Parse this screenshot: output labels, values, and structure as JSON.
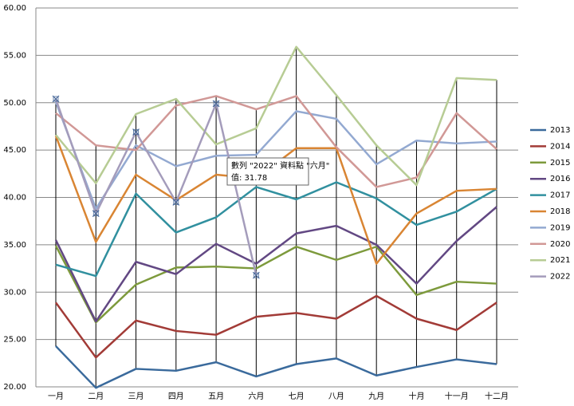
{
  "chart_data": {
    "type": "line",
    "categories": [
      "一月",
      "二月",
      "三月",
      "四月",
      "五月",
      "六月",
      "七月",
      "八月",
      "九月",
      "十月",
      "十一月",
      "十二月"
    ],
    "series": [
      {
        "name": "2013",
        "color": "#3a6a9c",
        "values": [
          24.3,
          19.9,
          21.9,
          21.7,
          22.6,
          21.1,
          22.4,
          23.0,
          21.2,
          22.1,
          22.9,
          22.4
        ]
      },
      {
        "name": "2014",
        "color": "#a23b37",
        "values": [
          28.9,
          23.1,
          27.0,
          25.9,
          25.5,
          27.4,
          27.8,
          27.2,
          29.6,
          27.2,
          26.0,
          28.9
        ]
      },
      {
        "name": "2015",
        "color": "#7d9a3c",
        "values": [
          34.9,
          26.8,
          30.8,
          32.6,
          32.7,
          32.5,
          34.8,
          33.4,
          34.8,
          29.7,
          31.1,
          30.9
        ]
      },
      {
        "name": "2016",
        "color": "#624883",
        "values": [
          35.5,
          26.9,
          33.2,
          31.9,
          35.1,
          33.0,
          36.2,
          37.0,
          35.0,
          30.9,
          35.4,
          39.0
        ]
      },
      {
        "name": "2017",
        "color": "#31909f",
        "values": [
          32.9,
          31.7,
          40.4,
          36.3,
          37.9,
          41.1,
          39.8,
          41.6,
          39.9,
          37.1,
          38.5,
          40.9
        ]
      },
      {
        "name": "2018",
        "color": "#d98533",
        "values": [
          46.5,
          35.3,
          42.4,
          39.7,
          42.4,
          42.0,
          45.2,
          45.2,
          33.0,
          38.3,
          40.7,
          40.9
        ]
      },
      {
        "name": "2019",
        "color": "#93a9d1",
        "values": [
          50.1,
          38.8,
          45.5,
          43.3,
          44.4,
          44.5,
          49.1,
          48.3,
          43.5,
          46.0,
          45.7,
          45.9
        ]
      },
      {
        "name": "2020",
        "color": "#d19896",
        "values": [
          48.9,
          45.5,
          45.0,
          49.7,
          50.7,
          49.3,
          50.7,
          45.3,
          41.1,
          42.1,
          48.9,
          45.1
        ]
      },
      {
        "name": "2021",
        "color": "#b7cc94",
        "values": [
          46.6,
          41.5,
          48.8,
          50.4,
          45.6,
          47.3,
          55.9,
          50.8,
          45.5,
          41.3,
          52.6,
          52.4
        ]
      },
      {
        "name": "2022",
        "color": "#a49cbb",
        "values": [
          50.4,
          38.3,
          46.9,
          39.5,
          49.9,
          31.78,
          null,
          null,
          null,
          null,
          null,
          null
        ]
      }
    ],
    "ylim": [
      20,
      60
    ],
    "yticks": [
      {
        "value": 20,
        "label": "20.00"
      },
      {
        "value": 25,
        "label": "25.00"
      },
      {
        "value": 30,
        "label": "30.00"
      },
      {
        "value": 35,
        "label": "35.00"
      },
      {
        "value": 40,
        "label": "40.00"
      },
      {
        "value": 45,
        "label": "45.00"
      },
      {
        "value": 50,
        "label": "50.00"
      },
      {
        "value": 55,
        "label": "55.00"
      },
      {
        "value": 60,
        "label": "60.00"
      }
    ],
    "grid": true,
    "legend": "right",
    "tooltip": {
      "line1": "數列 \"2022\" 資料點 \"六月\"",
      "line2": "值: 31.78"
    }
  }
}
